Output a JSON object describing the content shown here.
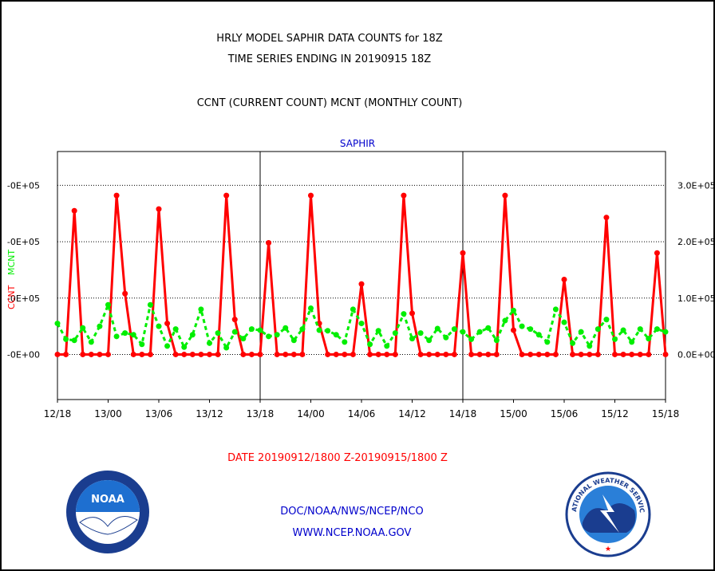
{
  "page": {
    "title_line1": "HRLY MODEL SAPHIR DATA COUNTS for 18Z",
    "title_line2": "TIME SERIES ENDING IN 20190915 18Z",
    "subtitle": "CCNT (CURRENT COUNT) MCNT (MONTHLY COUNT)",
    "date_range": "DATE 20190912/1800 Z-20190915/1800 Z",
    "footer_org": "DOC/NOAA/NWS/NCEP/NCO",
    "footer_url": "WWW.NCEP.NOAA.GOV",
    "noaa_logo_text": "NOAA",
    "nws_logo_text": "NATIONAL WEATHER SERVICE"
  },
  "colors": {
    "ccnt": "#ff0000",
    "mcnt": "#00ee00",
    "panel_title": "#0000cc",
    "footer": "#0000cc",
    "date": "#ff0000"
  },
  "chart_data": {
    "type": "line",
    "title": "SAPHIR",
    "ylabel_left": [
      "CCNT",
      "MCNT"
    ],
    "left_ticks": [
      "-0E+00",
      "-0E+05",
      "-0E+05",
      "-0E+05"
    ],
    "right_ticks": [
      "0.0E+00",
      "1.0E+05",
      "2.0E+05",
      "3.0E+05"
    ],
    "ylim": [
      -80000,
      360000
    ],
    "x_ticks": [
      "12/18",
      "13/00",
      "13/06",
      "13/12",
      "13/18",
      "14/00",
      "14/06",
      "14/12",
      "14/18",
      "15/00",
      "15/06",
      "15/12",
      "15/18"
    ],
    "x_start_hour": 0,
    "x_end_hour": 72,
    "grid": "dotted horizontal lines at 0, 1.0E+05, 2.0E+05, 3.0E+05; solid vertical lines at 13/18 and 14/18",
    "series": [
      {
        "name": "CCNT",
        "color": "#ff0000",
        "points": [
          [
            0,
            0
          ],
          [
            1,
            0
          ],
          [
            2,
            255000
          ],
          [
            3,
            0
          ],
          [
            4,
            0
          ],
          [
            5,
            0
          ],
          [
            6,
            0
          ],
          [
            7,
            282000
          ],
          [
            8,
            108000
          ],
          [
            9,
            0
          ],
          [
            10,
            0
          ],
          [
            11,
            0
          ],
          [
            12,
            258000
          ],
          [
            13,
            55000
          ],
          [
            14,
            0
          ],
          [
            15,
            0
          ],
          [
            16,
            0
          ],
          [
            17,
            0
          ],
          [
            18,
            0
          ],
          [
            19,
            0
          ],
          [
            20,
            282000
          ],
          [
            21,
            62000
          ],
          [
            22,
            0
          ],
          [
            23,
            0
          ],
          [
            24,
            0
          ],
          [
            25,
            198000
          ],
          [
            26,
            0
          ],
          [
            27,
            0
          ],
          [
            28,
            0
          ],
          [
            29,
            0
          ],
          [
            30,
            282000
          ],
          [
            31,
            55000
          ],
          [
            32,
            0
          ],
          [
            33,
            0
          ],
          [
            34,
            0
          ],
          [
            35,
            0
          ],
          [
            36,
            125000
          ],
          [
            37,
            0
          ],
          [
            38,
            0
          ],
          [
            39,
            0
          ],
          [
            40,
            0
          ],
          [
            41,
            282000
          ],
          [
            42,
            73000
          ],
          [
            43,
            0
          ],
          [
            44,
            0
          ],
          [
            45,
            0
          ],
          [
            46,
            0
          ],
          [
            47,
            0
          ],
          [
            48,
            180000
          ],
          [
            49,
            0
          ],
          [
            50,
            0
          ],
          [
            51,
            0
          ],
          [
            52,
            0
          ],
          [
            53,
            282000
          ],
          [
            54,
            43000
          ],
          [
            55,
            0
          ],
          [
            56,
            0
          ],
          [
            57,
            0
          ],
          [
            58,
            0
          ],
          [
            59,
            0
          ],
          [
            60,
            133000
          ],
          [
            61,
            0
          ],
          [
            62,
            0
          ],
          [
            63,
            0
          ],
          [
            64,
            0
          ],
          [
            65,
            243000
          ],
          [
            66,
            0
          ],
          [
            67,
            0
          ],
          [
            68,
            0
          ],
          [
            69,
            0
          ],
          [
            70,
            0
          ],
          [
            71,
            180000
          ],
          [
            72,
            0
          ]
        ]
      },
      {
        "name": "MCNT",
        "color": "#00ee00",
        "points": [
          [
            0,
            55000
          ],
          [
            1,
            27000
          ],
          [
            2,
            25000
          ],
          [
            3,
            47000
          ],
          [
            4,
            22000
          ],
          [
            5,
            50000
          ],
          [
            6,
            88000
          ],
          [
            7,
            32000
          ],
          [
            8,
            38000
          ],
          [
            9,
            35000
          ],
          [
            10,
            18000
          ],
          [
            11,
            88000
          ],
          [
            12,
            50000
          ],
          [
            13,
            15000
          ],
          [
            14,
            45000
          ],
          [
            15,
            13000
          ],
          [
            16,
            35000
          ],
          [
            17,
            80000
          ],
          [
            18,
            20000
          ],
          [
            19,
            38000
          ],
          [
            20,
            12000
          ],
          [
            21,
            40000
          ],
          [
            22,
            28000
          ],
          [
            23,
            45000
          ],
          [
            24,
            43000
          ],
          [
            25,
            32000
          ],
          [
            26,
            35000
          ],
          [
            27,
            47000
          ],
          [
            28,
            25000
          ],
          [
            29,
            45000
          ],
          [
            30,
            82000
          ],
          [
            31,
            43000
          ],
          [
            32,
            42000
          ],
          [
            33,
            35000
          ],
          [
            34,
            22000
          ],
          [
            35,
            80000
          ],
          [
            36,
            55000
          ],
          [
            37,
            18000
          ],
          [
            38,
            42000
          ],
          [
            39,
            15000
          ],
          [
            40,
            38000
          ],
          [
            41,
            72000
          ],
          [
            42,
            28000
          ],
          [
            43,
            38000
          ],
          [
            44,
            25000
          ],
          [
            45,
            46000
          ],
          [
            46,
            30000
          ],
          [
            47,
            45000
          ],
          [
            48,
            40000
          ],
          [
            49,
            27000
          ],
          [
            50,
            40000
          ],
          [
            51,
            47000
          ],
          [
            52,
            25000
          ],
          [
            53,
            60000
          ],
          [
            54,
            78000
          ],
          [
            55,
            50000
          ],
          [
            56,
            45000
          ],
          [
            57,
            35000
          ],
          [
            58,
            22000
          ],
          [
            59,
            80000
          ],
          [
            60,
            57000
          ],
          [
            61,
            20000
          ],
          [
            62,
            40000
          ],
          [
            63,
            15000
          ],
          [
            64,
            45000
          ],
          [
            65,
            62000
          ],
          [
            66,
            27000
          ],
          [
            67,
            43000
          ],
          [
            68,
            22000
          ],
          [
            69,
            45000
          ],
          [
            70,
            28000
          ],
          [
            71,
            45000
          ],
          [
            72,
            40000
          ]
        ]
      }
    ]
  }
}
